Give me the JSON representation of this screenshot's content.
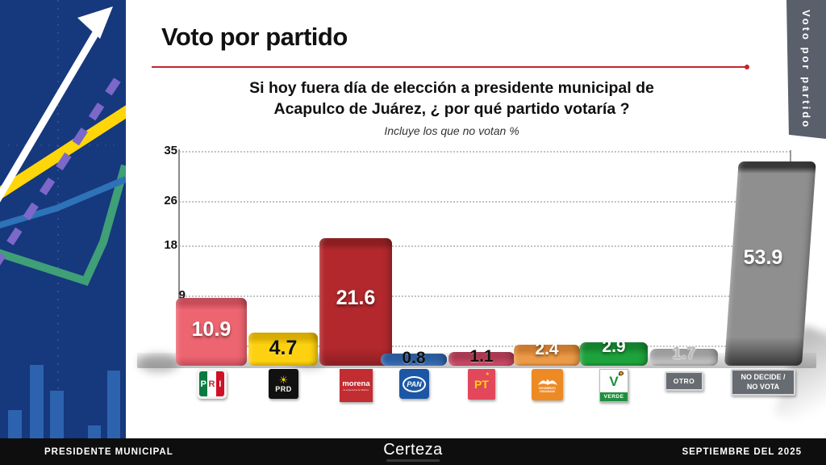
{
  "header": {
    "title": "Voto por partido"
  },
  "question": {
    "line1": "Si hoy fuera día de elección a presidente municipal  de",
    "line2": "Acapulco de Juárez, ¿ por qué partido votaría ?",
    "note": "Incluye los que no votan %"
  },
  "side_tab": {
    "label": "Voto por partido"
  },
  "footer": {
    "left": "PRESIDENTE MUNICIPAL",
    "center_logo": "Certeza",
    "right": "SEPTIEMBRE DEL 2025"
  },
  "accent_color": "#c0272d",
  "chart_data": {
    "type": "bar",
    "title": "Voto por partido",
    "subtitle": "Si hoy fuera día de elección a presidente municipal de Acapulco de Juárez, ¿ por qué partido votaría ?",
    "units_note": "Incluye los que no votan %",
    "categories": [
      "PRI",
      "PRD",
      "MORENA",
      "PAN",
      "PT",
      "MOVIMIENTO CIUDADANO",
      "VERDE",
      "OTRO",
      "NO DECIDE / NO VOTA"
    ],
    "values": [
      10.9,
      4.7,
      21.6,
      0.8,
      1.1,
      2.4,
      2.9,
      1.7,
      53.9
    ],
    "value_labels": [
      "10.9",
      "4.7",
      "21.6",
      "0.8",
      "1.1",
      "2.4",
      "2.9",
      "1.7",
      "53.9"
    ],
    "yticks": [
      35,
      26,
      18,
      9
    ],
    "ylim": [
      0,
      35
    ],
    "grid": "dotted-horizontal",
    "legend": "none",
    "bar_colors": [
      "#ed6570",
      "#fdd10f",
      "#b2282c",
      "#3a72b9",
      "#ce4a66",
      "#eb9a47",
      "#1ea23c",
      "#bcbcbc",
      "#8f8f8f"
    ],
    "bar_top_colors": [
      "#c74d5b",
      "#d9ae00",
      "#8c1e22",
      "#2b5c9e",
      "#a93a52",
      "#cd7c2f",
      "#14832e",
      "#9e9e9e",
      "#383838"
    ],
    "label_colors": [
      "#ffffff",
      "#111111",
      "#ffffff",
      "#111111",
      "#111111",
      "#ffffff",
      "#ffffff",
      "#b9b9b9",
      "#ffffff"
    ]
  },
  "logos": [
    {
      "kind": "pri",
      "letters": [
        "P",
        "R",
        "I"
      ]
    },
    {
      "kind": "prd",
      "sun": "☀",
      "text": "PRD"
    },
    {
      "kind": "morena",
      "text": "morena",
      "subtext": "la esperanza de México"
    },
    {
      "kind": "pan",
      "text": "PAN"
    },
    {
      "kind": "pt",
      "text": "PT",
      "star": "★"
    },
    {
      "kind": "mc",
      "subtext": "MOVIMIENTO CIUDADANO"
    },
    {
      "kind": "verde",
      "v": "V",
      "band": "VERDE"
    },
    {
      "kind": "otro",
      "text": "OTRO"
    },
    {
      "kind": "nodecide",
      "line1": "NO DECIDE /",
      "line2": "NO VOTA"
    }
  ]
}
